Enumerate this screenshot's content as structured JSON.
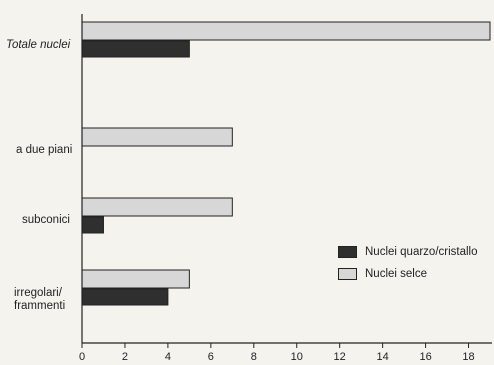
{
  "chart_data": {
    "type": "bar",
    "orientation": "horizontal",
    "categories": [
      "Totale nuclei",
      "a due piani",
      "subconici",
      "irregolari/\nframmenti"
    ],
    "series": [
      {
        "name": "Nuclei selce",
        "values": [
          19,
          7,
          7,
          5
        ],
        "color": "#d7d7d7"
      },
      {
        "name": "Nuclei quarzo/cristallo",
        "values": [
          5,
          0,
          1,
          4
        ],
        "color": "#2f2f2f"
      }
    ],
    "xlim": [
      0,
      19
    ],
    "xticks": [
      0,
      2,
      4,
      6,
      8,
      10,
      12,
      14,
      16,
      18
    ],
    "grid": false,
    "legend_position": "right",
    "legend_order": [
      "Nuclei quarzo/cristallo",
      "Nuclei selce"
    ]
  }
}
